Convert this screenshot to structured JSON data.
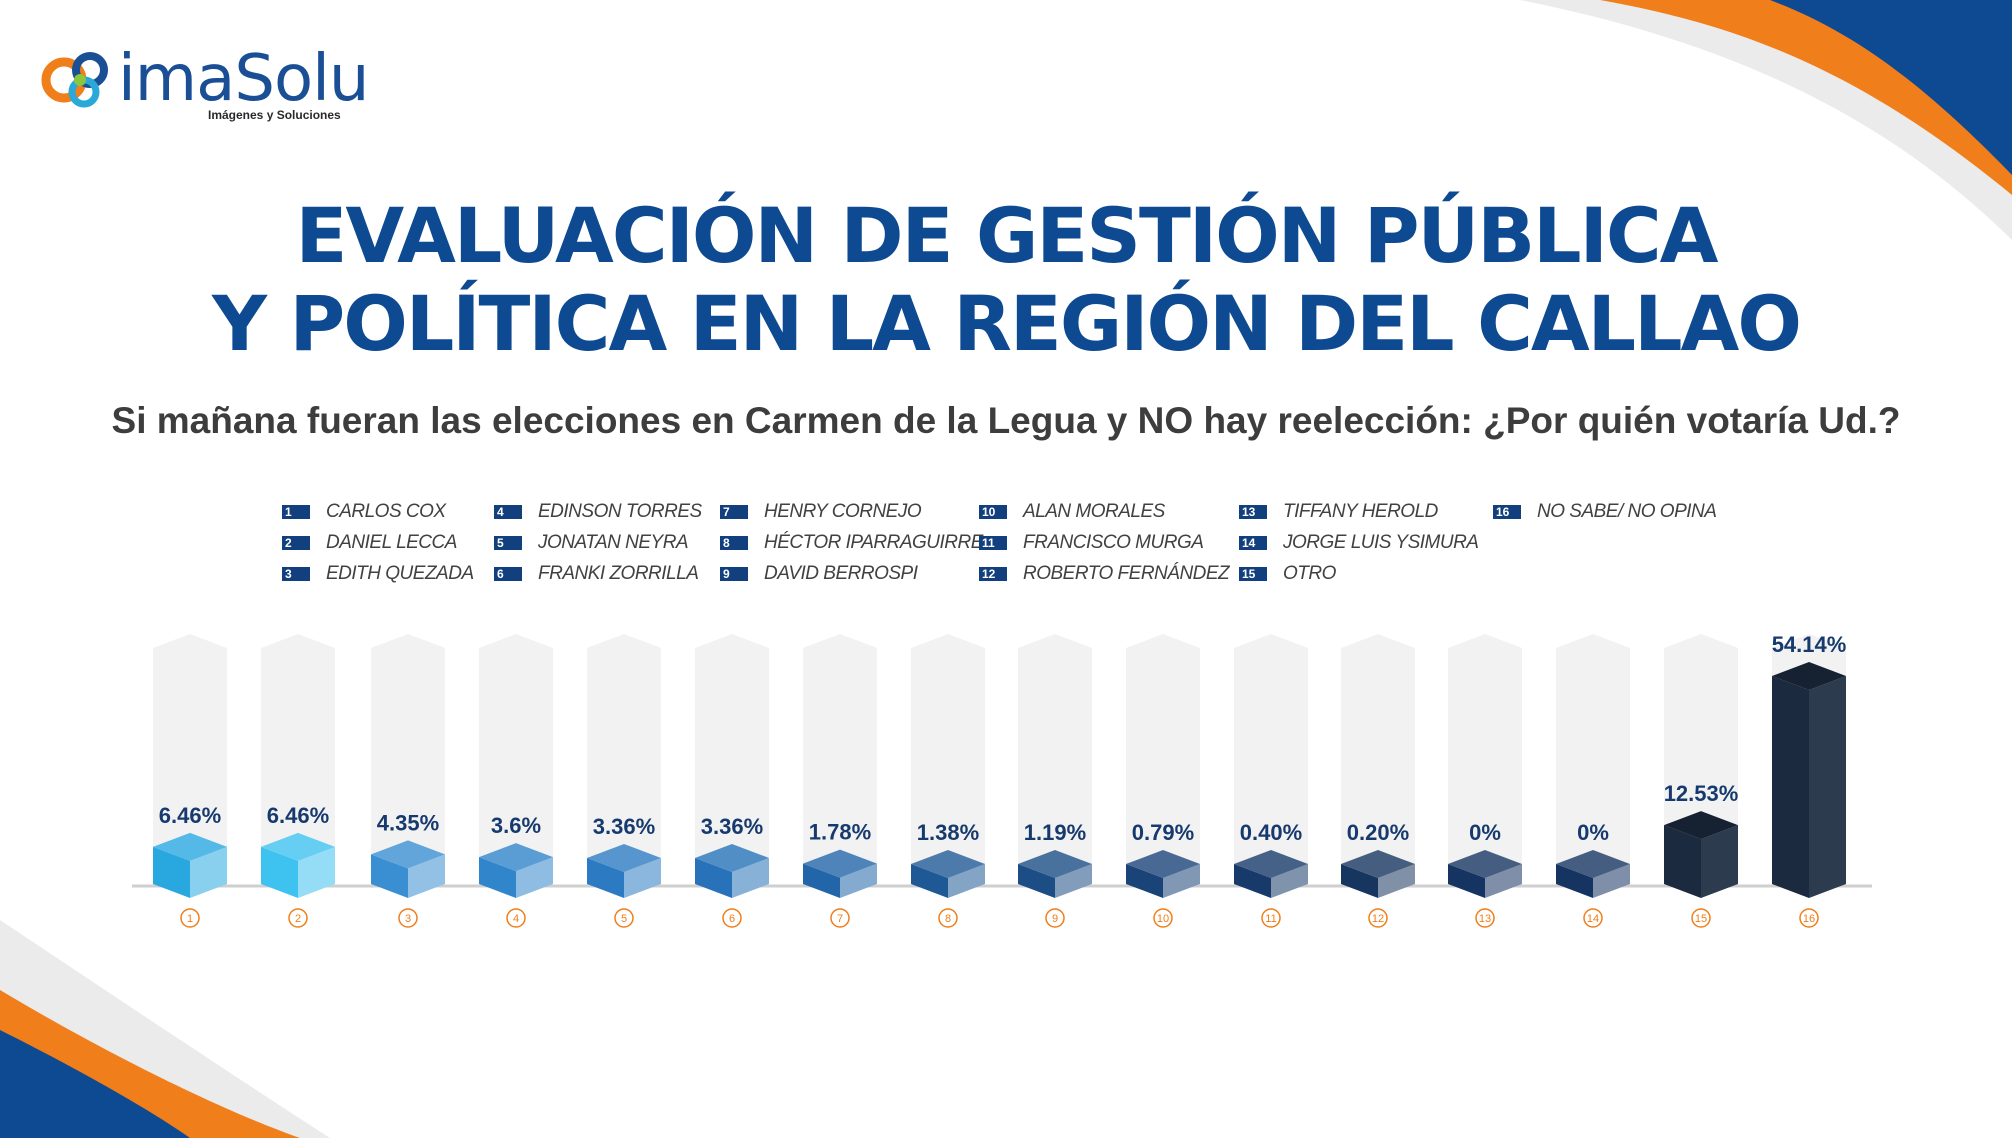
{
  "brand": {
    "name": "imaSolu",
    "tagline": "Imágenes y Soluciones"
  },
  "title_line1": "EVALUACIÓN DE GESTIÓN PÚBLICA",
  "title_line2": "Y POLÍTICA EN LA REGIÓN DEL CALLAO",
  "subtitle": "Si mañana fueran las elecciones en Carmen de la Legua y NO hay reelección: ¿Por quién votaría Ud.?",
  "colors": {
    "orange": "#f07e1a",
    "navy": "#0e4a92",
    "dark": "#1b2a3f"
  },
  "chart_data": {
    "type": "bar",
    "categories": [
      "1",
      "2",
      "3",
      "4",
      "5",
      "6",
      "7",
      "8",
      "9",
      "10",
      "11",
      "12",
      "13",
      "14",
      "15",
      "16"
    ],
    "legend": [
      {
        "num": "1",
        "name": "CARLOS COX"
      },
      {
        "num": "2",
        "name": "DANIEL LECCA"
      },
      {
        "num": "3",
        "name": "EDITH QUEZADA"
      },
      {
        "num": "4",
        "name": "EDINSON TORRES"
      },
      {
        "num": "5",
        "name": "JONATAN NEYRA"
      },
      {
        "num": "6",
        "name": "FRANKI ZORRILLA"
      },
      {
        "num": "7",
        "name": "HENRY CORNEJO"
      },
      {
        "num": "8",
        "name": "HÉCTOR IPARRAGUIRRE"
      },
      {
        "num": "9",
        "name": "DAVID BERROSPI"
      },
      {
        "num": "10",
        "name": "ALAN MORALES"
      },
      {
        "num": "11",
        "name": "FRANCISCO MURGA"
      },
      {
        "num": "12",
        "name": "ROBERTO FERNÁNDEZ"
      },
      {
        "num": "13",
        "name": "TIFFANY HEROLD"
      },
      {
        "num": "14",
        "name": "JORGE LUIS YSIMURA"
      },
      {
        "num": "15",
        "name": "OTRO"
      },
      {
        "num": "16",
        "name": "NO SABE/ NO OPINA"
      }
    ],
    "values": [
      6.46,
      6.46,
      4.35,
      3.6,
      3.36,
      3.36,
      1.78,
      1.38,
      1.19,
      0.79,
      0.4,
      0.2,
      0,
      0,
      12.53,
      54.14
    ],
    "labels": [
      "6.46%",
      "6.46%",
      "4.35%",
      "3.6%",
      "3.36%",
      "3.36%",
      "1.78%",
      "1.38%",
      "1.19%",
      "0.79%",
      "0.40%",
      "0.20%",
      "0%",
      "0%",
      "12.53%",
      "54.14%"
    ],
    "colors": [
      "#29a8e0",
      "#3ec2ef",
      "#3a8fd2",
      "#3185cb",
      "#2c7bc2",
      "#2772b8",
      "#2265a8",
      "#1f5995",
      "#1c4d85",
      "#1a4478",
      "#173a6a",
      "#16365f",
      "#163462",
      "#163462",
      "#1b2a3f",
      "#1b2a3f"
    ],
    "ylim": [
      0,
      54.14
    ],
    "grid": false
  }
}
